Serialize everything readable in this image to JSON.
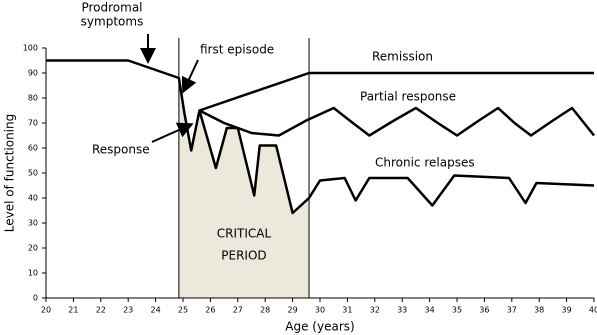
{
  "chart_data": {
    "type": "line",
    "xlabel": "Age (years)",
    "ylabel": "Level of functioning",
    "xlim": [
      20,
      40
    ],
    "ylim": [
      0,
      100
    ],
    "xticks": [
      20,
      21,
      22,
      23,
      24,
      25,
      26,
      27,
      28,
      29,
      30,
      31,
      32,
      33,
      34,
      35,
      36,
      37,
      38,
      39,
      40
    ],
    "yticks": [
      0,
      10,
      20,
      30,
      40,
      50,
      60,
      70,
      80,
      90,
      100
    ],
    "critical_period": [
      24.85,
      29.6
    ],
    "annotations": {
      "prodromal": [
        "Prodromal",
        "symptoms"
      ],
      "first_episode": "first episode",
      "response": "Response",
      "critical": [
        "CRITICAL",
        "PERIOD"
      ]
    },
    "series": [
      {
        "name": "Remission",
        "color": "#000000",
        "x": [
          25.6,
          29.6,
          40
        ],
        "values": [
          75,
          90,
          90
        ]
      },
      {
        "name": "Partial response",
        "color": "#000000",
        "x": [
          25.6,
          26.5,
          27.5,
          28.5,
          29.5,
          30.5,
          31.2,
          31.8,
          32.7,
          33.5,
          34.3,
          35,
          35.8,
          36.5,
          37.1,
          37.7,
          38.5,
          39.2,
          40
        ],
        "values": [
          75,
          70,
          66,
          65,
          71,
          76,
          70,
          65,
          71,
          76,
          70,
          65,
          71,
          76,
          70,
          65,
          71,
          76,
          65
        ]
      },
      {
        "name": "Chronic relapses",
        "color": "#000000",
        "x": [
          20,
          23,
          24.85,
          25.05,
          25.3,
          25.6,
          26.2,
          26.6,
          27,
          27.6,
          27.8,
          28.4,
          29,
          29.6,
          30,
          30.9,
          31.3,
          31.8,
          33.2,
          34.1,
          34.9,
          36.9,
          37.5,
          37.9,
          40
        ],
        "values": [
          95,
          95,
          88,
          74,
          59,
          75,
          52,
          68,
          68,
          41,
          61,
          61,
          34,
          40,
          47,
          48,
          39,
          48,
          48,
          37,
          49,
          48,
          38,
          46,
          45
        ]
      }
    ]
  }
}
